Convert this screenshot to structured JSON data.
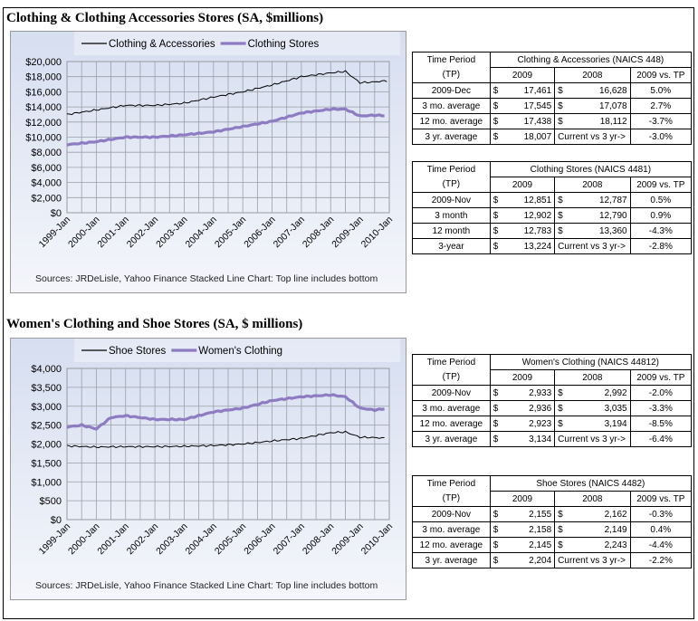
{
  "sections": [
    {
      "title": "Clothing & Clothing Accessories Stores (SA, $millions)",
      "legend": [
        "Clothing & Accessories",
        "Clothing Stores"
      ],
      "sources": "Sources: JRDeLisle, Yahoo Finance    Stacked Line Chart: Top line includes bottom",
      "tables": [
        {
          "header_tp": [
            "Time Period",
            "(TP)"
          ],
          "title": "Clothing & Accessories (NAICS 448)",
          "cols": [
            "2009",
            "2008",
            "2009 vs. TP"
          ],
          "rows": [
            {
              "label": "2009-Dec",
              "d1": "$",
              "v1": "17,461",
              "d2": "$",
              "v2": "16,628",
              "pct": "5.0%"
            },
            {
              "label": "3 mo. average",
              "d1": "$",
              "v1": "17,545",
              "d2": "$",
              "v2": "17,078",
              "pct": "2.7%"
            },
            {
              "label": "12 mo. average",
              "d1": "$",
              "v1": "17,438",
              "d2": "$",
              "v2": "18,112",
              "pct": "-3.7%"
            },
            {
              "label": "3 yr. average",
              "d1": "$",
              "v1": "18,007",
              "d2": "Current vs 3 yr->",
              "v2": "",
              "pct": "-3.0%"
            }
          ]
        },
        {
          "header_tp": [
            "Time Period",
            "(TP)"
          ],
          "title": "Clothing Stores (NAICS 4481)",
          "cols": [
            "2009",
            "2008",
            "2009 vs. TP"
          ],
          "rows": [
            {
              "label": "2009-Nov",
              "d1": "$",
              "v1": "12,851",
              "d2": "$",
              "v2": "12,787",
              "pct": "0.5%"
            },
            {
              "label": "3 month",
              "d1": "$",
              "v1": "12,902",
              "d2": "$",
              "v2": "12,790",
              "pct": "0.9%"
            },
            {
              "label": "12 month",
              "d1": "$",
              "v1": "12,783",
              "d2": "$",
              "v2": "13,360",
              "pct": "-4.3%"
            },
            {
              "label": "3-year",
              "d1": "$",
              "v1": "13,224",
              "d2": "Current vs 3 yr->",
              "v2": "",
              "pct": "-2.8%"
            }
          ]
        }
      ]
    },
    {
      "title": "Women's Clothing and Shoe Stores (SA, $ millions)",
      "legend": [
        "Shoe Stores",
        "Women's Clothing"
      ],
      "sources": "Sources: JRDeLisle, Yahoo Finance    Stacked Line Chart: Top line includes bottom",
      "tables": [
        {
          "header_tp": [
            "Time Period",
            "(TP)"
          ],
          "title": "Women's Clothing (NAICS 44812)",
          "cols": [
            "2009",
            "2008",
            "2009 vs. TP"
          ],
          "rows": [
            {
              "label": "2009-Nov",
              "d1": "$",
              "v1": "2,933",
              "d2": "$",
              "v2": "2,992",
              "pct": "-2.0%"
            },
            {
              "label": "3 mo. average",
              "d1": "$",
              "v1": "2,936",
              "d2": "$",
              "v2": "3,035",
              "pct": "-3.3%"
            },
            {
              "label": "12 mo. average",
              "d1": "$",
              "v1": "2,923",
              "d2": "$",
              "v2": "3,194",
              "pct": "-8.5%"
            },
            {
              "label": "3 yr. average",
              "d1": "$",
              "v1": "3,134",
              "d2": "Current vs 3 yr->",
              "v2": "",
              "pct": "-6.4%"
            }
          ]
        },
        {
          "header_tp": [
            "Time Period",
            "(TP)"
          ],
          "title": "Shoe Stores (NAICS 4482)",
          "cols": [
            "2009",
            "2008",
            "2009 vs. TP"
          ],
          "rows": [
            {
              "label": "2009-Nov",
              "d1": "$",
              "v1": "2,155",
              "d2": "$",
              "v2": "2,162",
              "pct": "-0.3%"
            },
            {
              "label": "3 mo. average",
              "d1": "$",
              "v1": "2,158",
              "d2": "$",
              "v2": "2,149",
              "pct": "0.4%"
            },
            {
              "label": "12 mo. average",
              "d1": "$",
              "v1": "2,145",
              "d2": "$",
              "v2": "2,243",
              "pct": "-4.4%"
            },
            {
              "label": "3 yr. average",
              "d1": "$",
              "v1": "2,204",
              "d2": "Current vs 3 yr->",
              "v2": "",
              "pct": "-2.2%"
            }
          ]
        }
      ]
    }
  ],
  "chart_data": [
    {
      "type": "line",
      "title": "Clothing & Clothing Accessories Stores (SA, $millions)",
      "x_tick_labels": [
        "1999-Jan",
        "2000-Jan",
        "2001-Jan",
        "2002-Jan",
        "2003-Jan",
        "2004-Jan",
        "2005-Jan",
        "2006-Jan",
        "2007-Jan",
        "2008-Jan",
        "2009-Jan",
        "2010-Jan"
      ],
      "y_tick_labels": [
        "$0",
        "$2,000",
        "$4,000",
        "$6,000",
        "$8,000",
        "$10,000",
        "$12,000",
        "$14,000",
        "$16,000",
        "$18,000",
        "$20,000"
      ],
      "ylim": [
        0,
        20000
      ],
      "xlim": [
        "1999-Jan",
        "2010-Jan"
      ],
      "grid": true,
      "legend_position": "top",
      "series": [
        {
          "name": "Clothing & Accessories",
          "color": "#000000",
          "style": "thin",
          "x": [
            "1999-Jan",
            "2000-Jan",
            "2001-Jan",
            "2002-Jan",
            "2003-Jan",
            "2004-Jan",
            "2005-Jan",
            "2006-Jan",
            "2007-Jan",
            "2008-Jan",
            "2008-Jul",
            "2009-Jan",
            "2009-Jul",
            "2009-Dec"
          ],
          "values": [
            13000,
            13600,
            14200,
            14200,
            14500,
            15300,
            16000,
            16900,
            18000,
            18500,
            18700,
            17200,
            17300,
            17461
          ]
        },
        {
          "name": "Clothing Stores",
          "color": "#8e7cc3",
          "style": "thick",
          "x": [
            "1999-Jan",
            "2000-Jan",
            "2001-Jan",
            "2002-Jan",
            "2003-Jan",
            "2004-Jan",
            "2005-Jan",
            "2006-Jan",
            "2007-Jan",
            "2008-Jan",
            "2008-Jul",
            "2009-Jan",
            "2009-Jul",
            "2009-Nov"
          ],
          "values": [
            9000,
            9400,
            10000,
            10000,
            10300,
            10700,
            11400,
            12100,
            13200,
            13700,
            13700,
            12800,
            12900,
            12851
          ]
        }
      ]
    },
    {
      "type": "line",
      "title": "Women's Clothing and Shoe Stores (SA, $ millions)",
      "x_tick_labels": [
        "1999-Jan",
        "2000-Jan",
        "2001-Jan",
        "2002-Jan",
        "2003-Jan",
        "2004-Jan",
        "2005-Jan",
        "2006-Jan",
        "2007-Jan",
        "2008-Jan",
        "2009-Jan",
        "2010-Jan"
      ],
      "y_tick_labels": [
        "$0",
        "$500",
        "$1,000",
        "$1,500",
        "$2,000",
        "$2,500",
        "$3,000",
        "$3,500",
        "$4,000"
      ],
      "ylim": [
        0,
        4000
      ],
      "xlim": [
        "1999-Jan",
        "2010-Jan"
      ],
      "grid": true,
      "legend_position": "top",
      "series": [
        {
          "name": "Shoe Stores",
          "color": "#000000",
          "style": "thin",
          "x": [
            "1999-Jan",
            "2000-Jan",
            "2001-Jan",
            "2002-Jan",
            "2003-Jan",
            "2004-Jan",
            "2005-Jan",
            "2006-Jan",
            "2007-Jan",
            "2008-Jan",
            "2008-Jul",
            "2009-Jan",
            "2009-Jul",
            "2009-Nov"
          ],
          "values": [
            1950,
            1920,
            1930,
            1930,
            1940,
            1960,
            2000,
            2080,
            2150,
            2300,
            2320,
            2180,
            2170,
            2155
          ]
        },
        {
          "name": "Women's Clothing",
          "color": "#8e7cc3",
          "style": "thick",
          "x": [
            "1999-Jan",
            "1999-Jul",
            "2000-Jan",
            "2000-Jul",
            "2001-Jan",
            "2002-Jan",
            "2003-Jan",
            "2004-Jan",
            "2005-Jan",
            "2006-Jan",
            "2007-Jan",
            "2008-Jan",
            "2008-Jul",
            "2009-Jan",
            "2009-Jul",
            "2009-Nov"
          ],
          "values": [
            2450,
            2500,
            2400,
            2700,
            2750,
            2650,
            2650,
            2850,
            2950,
            3150,
            3250,
            3300,
            3250,
            2950,
            2900,
            2933
          ]
        }
      ]
    }
  ]
}
